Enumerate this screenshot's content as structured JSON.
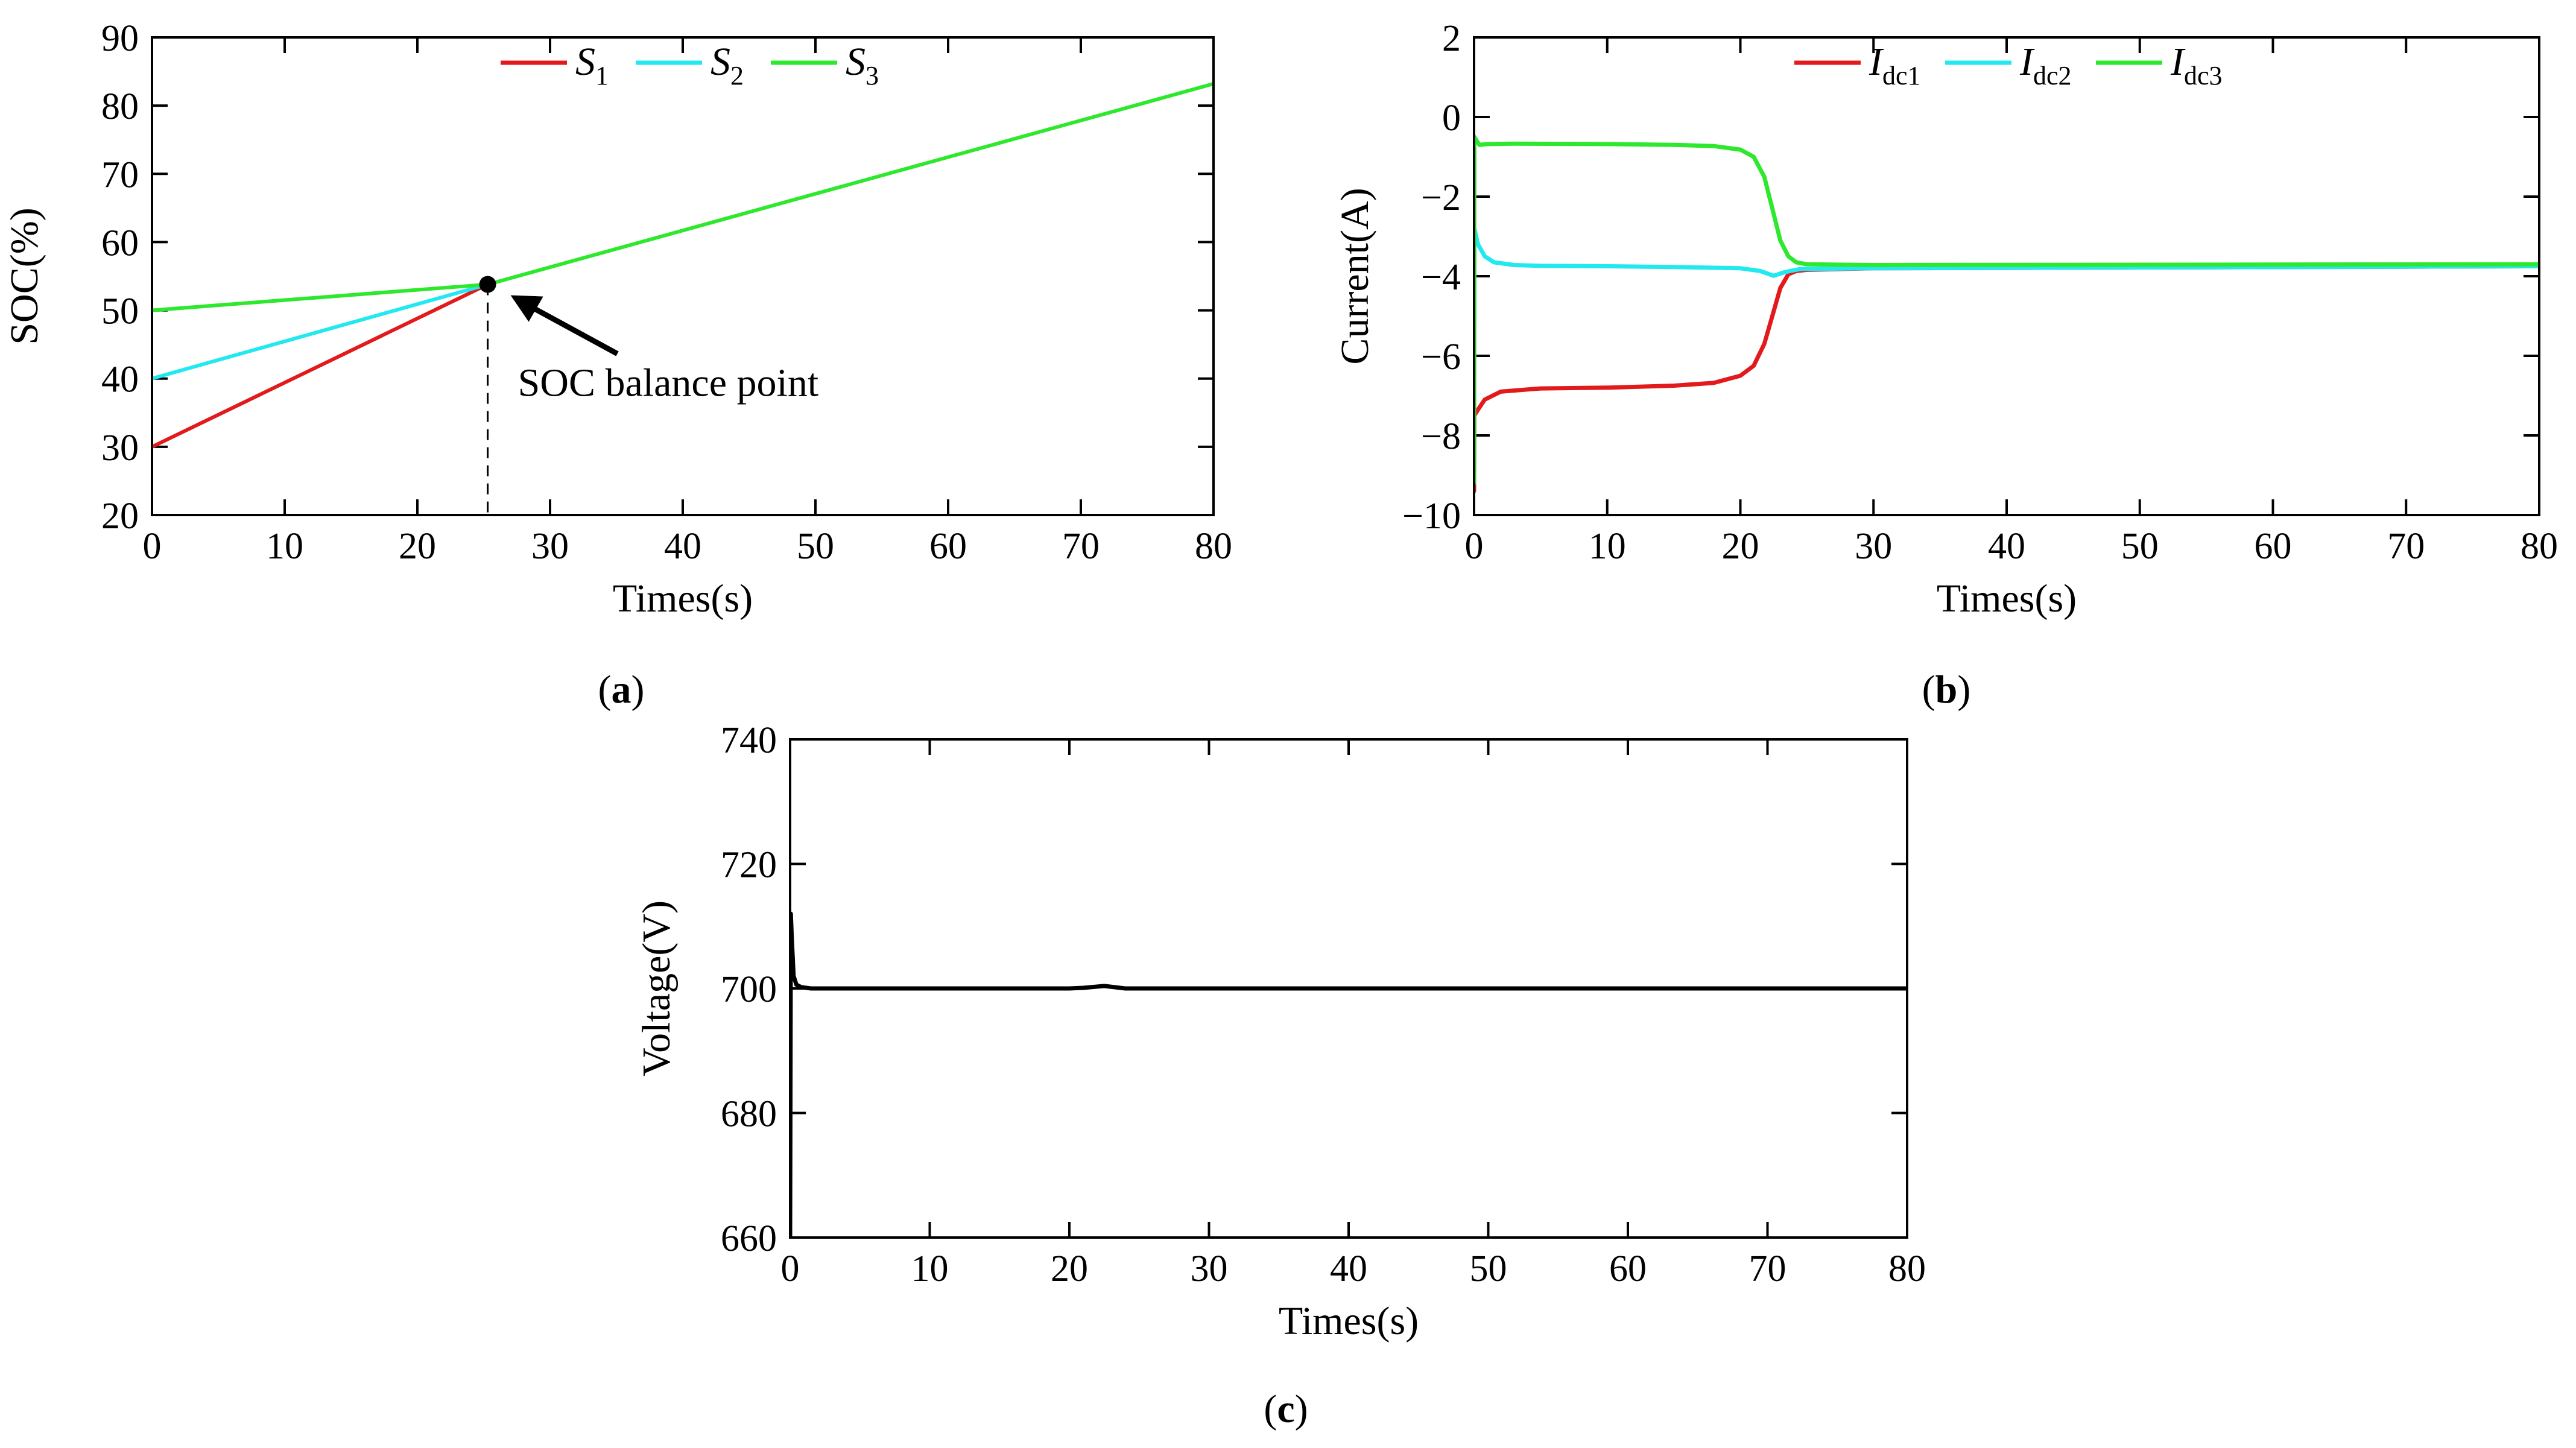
{
  "chart_data": [
    {
      "panel": "a",
      "panel_label": "a",
      "type": "line",
      "title": "",
      "xlabel": "Times(s)",
      "ylabel": "SOC(%)",
      "xlim": [
        0,
        80
      ],
      "ylim": [
        20,
        90
      ],
      "xticks": [
        "0",
        "10",
        "20",
        "30",
        "40",
        "50",
        "60",
        "70",
        "80"
      ],
      "yticks": [
        "20",
        "30",
        "40",
        "50",
        "60",
        "70",
        "80",
        "90"
      ],
      "legend_position": "top-center",
      "series": [
        {
          "name": "S1",
          "legend_main": "S",
          "legend_sub": "1",
          "color": "#e31a1c",
          "x": [
            0,
            25.3
          ],
          "y": [
            30,
            53.8
          ]
        },
        {
          "name": "S2",
          "legend_main": "S",
          "legend_sub": "2",
          "color": "#22e8f0",
          "x": [
            0,
            25.3
          ],
          "y": [
            40,
            53.8
          ]
        },
        {
          "name": "S3",
          "legend_main": "S",
          "legend_sub": "3",
          "color": "#2ee82e",
          "x": [
            0,
            25.3,
            80
          ],
          "y": [
            50,
            53.8,
            83.2
          ]
        }
      ],
      "annotations": [
        {
          "text": "SOC balance point",
          "x": 25.3,
          "y": 53.8
        }
      ]
    },
    {
      "panel": "b",
      "panel_label": "b",
      "type": "line",
      "title": "",
      "xlabel": "Times(s)",
      "ylabel": "Current(A)",
      "xlim": [
        0,
        80
      ],
      "ylim": [
        -10,
        2
      ],
      "xticks": [
        "0",
        "10",
        "20",
        "30",
        "40",
        "50",
        "60",
        "70",
        "80"
      ],
      "yticks": [
        "−10",
        "−8",
        "−6",
        "−4",
        "−2",
        "0",
        "2"
      ],
      "legend_position": "top-center",
      "series": [
        {
          "name": "Idc1",
          "legend_main": "I",
          "legend_sub": "dc1",
          "color": "#e31a1c",
          "x": [
            0,
            0.02,
            0.3,
            0.8,
            2,
            5,
            10,
            15,
            18,
            20,
            21,
            21.8,
            22.4,
            23,
            23.6,
            24.2,
            25,
            30,
            80
          ],
          "y": [
            -9.4,
            -7.5,
            -7.35,
            -7.1,
            -6.9,
            -6.82,
            -6.8,
            -6.75,
            -6.68,
            -6.5,
            -6.25,
            -5.7,
            -5.0,
            -4.3,
            -3.95,
            -3.87,
            -3.84,
            -3.8,
            -3.75
          ]
        },
        {
          "name": "Idc2",
          "legend_main": "I",
          "legend_sub": "dc2",
          "color": "#22e8f0",
          "x": [
            0,
            0.02,
            0.3,
            0.8,
            1.5,
            3,
            5,
            10,
            15,
            20,
            21.5,
            22.5,
            23.3,
            24.5,
            30,
            80
          ],
          "y": [
            -9.2,
            -2.8,
            -3.2,
            -3.5,
            -3.65,
            -3.72,
            -3.74,
            -3.75,
            -3.77,
            -3.8,
            -3.87,
            -3.99,
            -3.9,
            -3.82,
            -3.8,
            -3.75
          ]
        },
        {
          "name": "Idc3",
          "legend_main": "I",
          "legend_sub": "dc3",
          "color": "#2ee82e",
          "x": [
            0,
            0.02,
            0.4,
            1,
            3,
            10,
            15,
            18,
            20,
            21,
            21.8,
            22.4,
            23,
            23.6,
            24.2,
            25,
            30,
            80
          ],
          "y": [
            -9.2,
            -0.5,
            -0.7,
            -0.68,
            -0.67,
            -0.68,
            -0.7,
            -0.73,
            -0.82,
            -1.0,
            -1.5,
            -2.3,
            -3.1,
            -3.5,
            -3.65,
            -3.7,
            -3.72,
            -3.7
          ]
        }
      ]
    },
    {
      "panel": "c",
      "panel_label": "c",
      "type": "line",
      "title": "",
      "xlabel": "Times(s)",
      "ylabel": "Voltage(V)",
      "xlim": [
        0,
        80
      ],
      "ylim": [
        660,
        740
      ],
      "xticks": [
        "0",
        "10",
        "20",
        "30",
        "40",
        "50",
        "60",
        "70",
        "80"
      ],
      "yticks": [
        "660",
        "680",
        "700",
        "720",
        "740"
      ],
      "legend_position": "none",
      "series": [
        {
          "name": "Voltage",
          "color": "#000000",
          "x": [
            0,
            0.05,
            0.12,
            0.25,
            0.45,
            0.8,
            1.5,
            5,
            10,
            20,
            21,
            22.5,
            24,
            30,
            80
          ],
          "y": [
            660,
            712,
            708,
            702,
            700.6,
            700.2,
            700,
            700,
            700,
            700,
            700.1,
            700.4,
            700,
            700,
            700
          ]
        }
      ]
    }
  ]
}
